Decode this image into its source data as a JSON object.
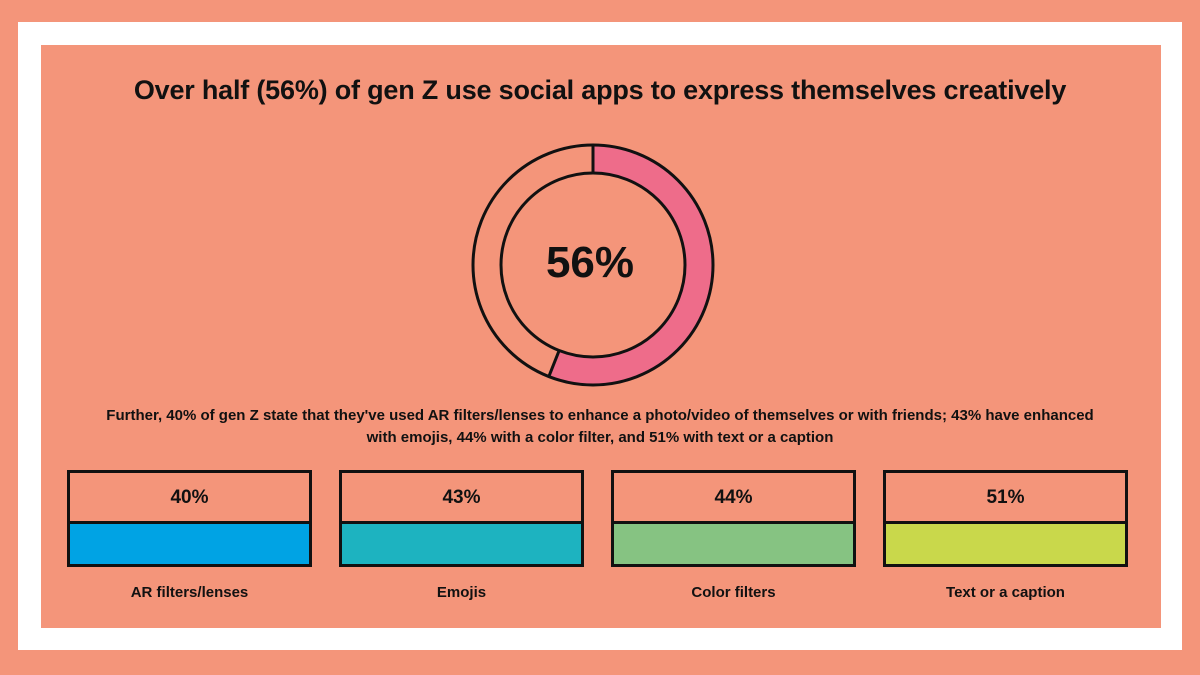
{
  "title": "Over half (56%) of gen Z use social apps to express themselves creatively",
  "description": "Further, 40% of gen Z state that they've used AR filters/lenses to enhance a photo/video of themselves or with friends; 43% have enhanced with emojis, 44% with a color filter, and 51% with text or a caption",
  "chart_data": [
    {
      "type": "pie",
      "style": "donut",
      "value_label": "56%",
      "values": [
        56,
        44
      ],
      "colors": {
        "filled": "#EE6C8A",
        "empty": "#F4957A",
        "outline": "#111111"
      }
    },
    {
      "type": "bar",
      "categories": [
        "AR filters/lenses",
        "Emojis",
        "Color filters",
        "Text or a caption"
      ],
      "values": [
        40,
        43,
        44,
        51
      ],
      "value_labels": [
        "40%",
        "43%",
        "44%",
        "51%"
      ],
      "colors": [
        "#00A3E4",
        "#1DB3C0",
        "#86C382",
        "#C9D84B"
      ]
    }
  ],
  "colors": {
    "background": "#F4957A",
    "frame": "#FFFFFF",
    "text": "#111111"
  }
}
